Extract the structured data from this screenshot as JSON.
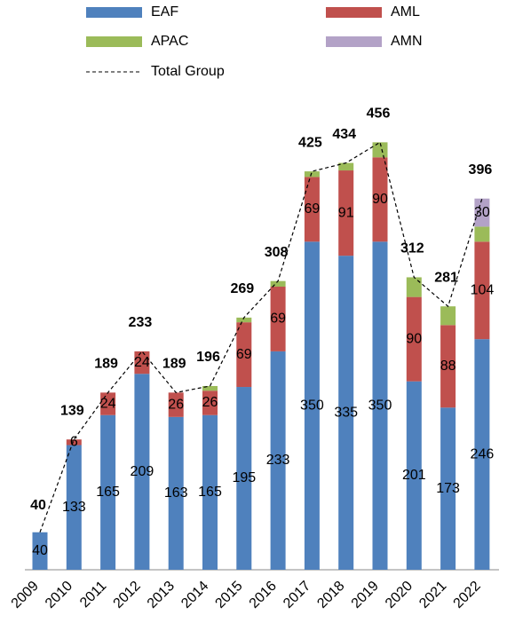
{
  "chart_data": {
    "type": "bar",
    "stacked": true,
    "categories": [
      "2009",
      "2010",
      "2011",
      "2012",
      "2013",
      "2014",
      "2015",
      "2016",
      "2017",
      "2018",
      "2019",
      "2020",
      "2021",
      "2022"
    ],
    "series": [
      {
        "name": "EAF",
        "color": "#4f81bd",
        "values": [
          40,
          133,
          165,
          209,
          163,
          165,
          195,
          233,
          350,
          335,
          350,
          201,
          173,
          246
        ]
      },
      {
        "name": "AML",
        "color": "#c0504d",
        "values": [
          null,
          6,
          24,
          24,
          26,
          26,
          69,
          69,
          69,
          91,
          90,
          90,
          88,
          104
        ]
      },
      {
        "name": "APAC",
        "color": "#9bbb59",
        "values": [
          null,
          null,
          null,
          null,
          null,
          5,
          5,
          6,
          6,
          8,
          16,
          21,
          20,
          16
        ]
      },
      {
        "name": "AMN",
        "color": "#b3a2c7",
        "values": [
          null,
          null,
          null,
          null,
          null,
          null,
          null,
          null,
          null,
          null,
          null,
          null,
          null,
          30
        ]
      },
      {
        "name": "Total Group",
        "type": "line",
        "color": "#000000",
        "values": [
          40,
          139,
          189,
          233,
          189,
          196,
          269,
          308,
          425,
          434,
          456,
          312,
          281,
          396
        ]
      }
    ],
    "labeled_series": [
      "EAF",
      "AML",
      "AMN"
    ],
    "ylim": [
      0,
      480
    ]
  }
}
